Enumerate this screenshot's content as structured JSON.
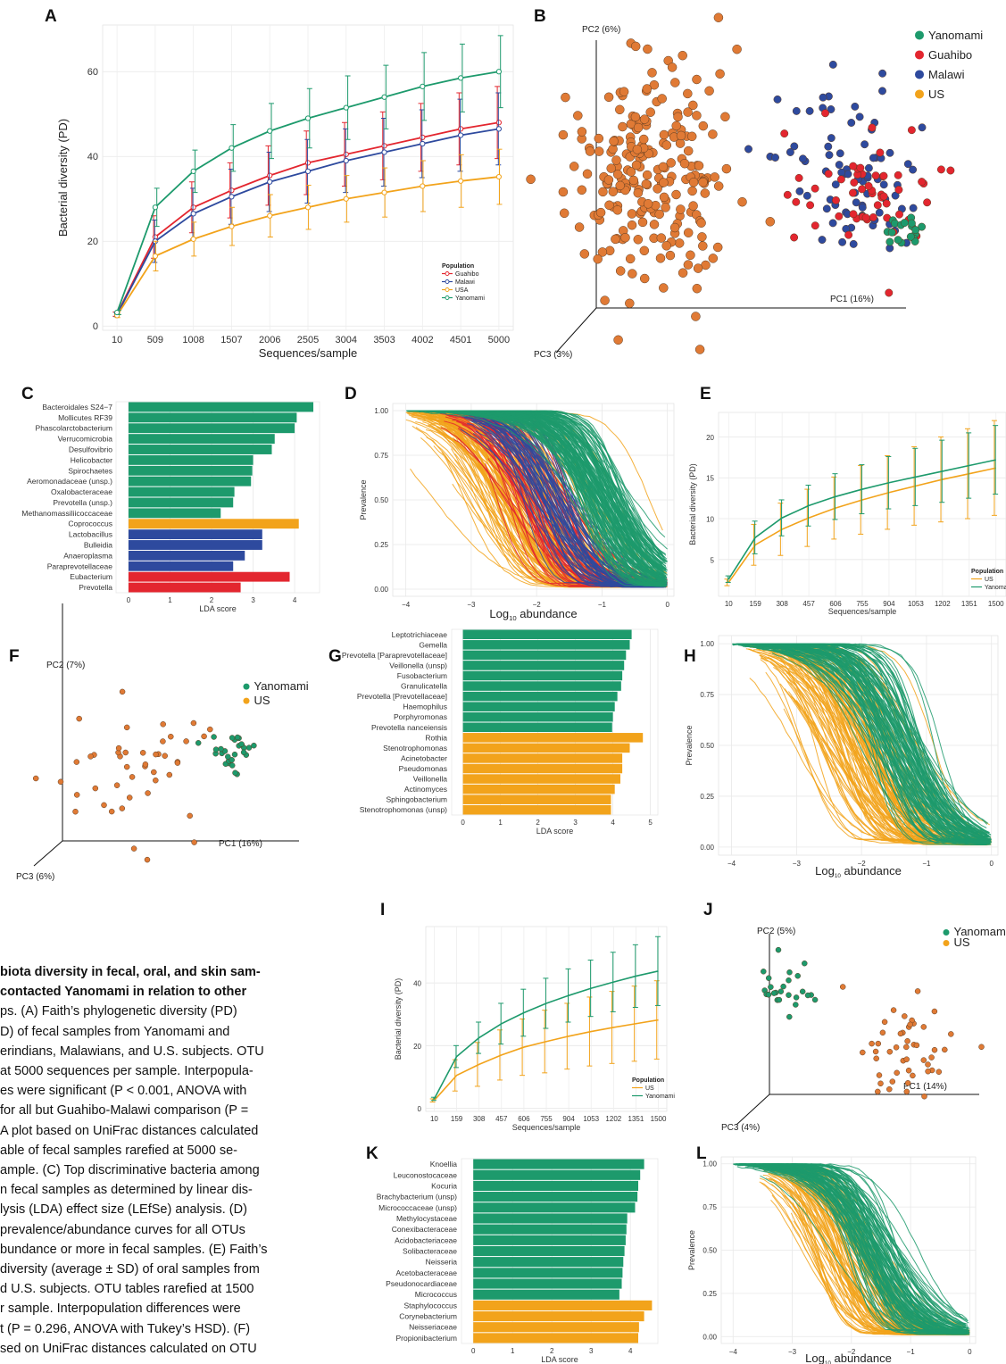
{
  "panel_labels": [
    "A",
    "B",
    "C",
    "D",
    "E",
    "F",
    "G",
    "H",
    "I",
    "J",
    "K",
    "L"
  ],
  "colors": {
    "yanomami": "#1d9a6c",
    "guahibo": "#e3262f",
    "malawi": "#2e4a9e",
    "us": "#f2a31b",
    "us_point": "#e07a35"
  },
  "caption_lines": [
    "biota diversity in fecal, oral, and skin sam-",
    "contacted Yanomami in relation to other",
    "ps. (A) Faith’s phylogenetic diversity (PD)",
    "D) of fecal samples from Yanomami and",
    "erindians, Malawians, and U.S. subjects. OTU",
    "at 5000 sequences per sample. Interpopula-",
    "es were significant (P < 0.001, ANOVA with",
    "for all but Guahibo-Malawi comparison (P =",
    "A plot based on UniFrac distances calculated",
    "able of fecal samples rarefied at 5000 se-",
    "ample. (C) Top discriminative bacteria among",
    "n fecal samples as determined by linear dis-",
    "lysis (LDA) effect size (LEfSe) analysis. (D)",
    "prevalence/abundance curves for all OTUs",
    "bundance or more in fecal samples. (E) Faith’s",
    "diversity (average ± SD) of oral samples from",
    "d U.S. subjects. OTU tables rarefied at 1500",
    "r sample. Interpopulation differences were",
    "t (P = 0.296, ANOVA with Tukey’s HSD). (F)",
    "sed on UniFrac distances calculated on OTU"
  ],
  "chart_data": [
    {
      "panel": "A",
      "type": "line",
      "xlabel": "Sequences/sample",
      "ylabel": "Bacterial diversity (PD)",
      "categories": [
        "10",
        "509",
        "1008",
        "1507",
        "2006",
        "2505",
        "3004",
        "3503",
        "4002",
        "4501",
        "5000"
      ],
      "ylim": [
        -1,
        71
      ],
      "yticks": [
        "0",
        "20",
        "40",
        "60"
      ],
      "legend_title": "Population",
      "legend": [
        "Guahibo",
        "Malawi",
        "USA",
        "Yanomami"
      ],
      "series": [
        {
          "name": "Guahibo",
          "color": "#e3262f",
          "values": [
            2.8,
            21,
            28,
            32,
            35.5,
            38.5,
            40.5,
            42.5,
            44.5,
            46.5,
            48
          ],
          "sd": [
            0.5,
            5,
            6,
            6.5,
            7,
            7.5,
            7.5,
            8,
            8,
            8.5,
            8.5
          ]
        },
        {
          "name": "Malawi",
          "color": "#2e4a9e",
          "values": [
            2.7,
            20,
            26.5,
            30.5,
            34,
            36.5,
            39,
            41,
            43,
            45,
            46.5
          ],
          "sd": [
            0.5,
            5,
            6,
            6.5,
            7,
            7.5,
            7.5,
            8,
            8,
            8.5,
            8.5
          ]
        },
        {
          "name": "USA",
          "color": "#f2a31b",
          "values": [
            2.5,
            16.5,
            20.5,
            23.5,
            26,
            28,
            30,
            31.5,
            33,
            34.2,
            35.2
          ],
          "sd": [
            0.5,
            3.5,
            4,
            4.5,
            5,
            5.2,
            5.5,
            5.8,
            6,
            6.2,
            6.5
          ]
        },
        {
          "name": "Yanomami",
          "color": "#1d9a6c",
          "values": [
            3.2,
            28,
            36.5,
            42,
            46,
            49,
            51.5,
            54,
            56.5,
            58.5,
            60
          ],
          "sd": [
            0.5,
            4.5,
            5,
            5.5,
            6.5,
            7,
            7.5,
            7.5,
            8,
            8,
            8.5
          ]
        }
      ]
    },
    {
      "panel": "B",
      "type": "scatter",
      "pc1": "PC1 (16%)",
      "pc2": "PC2 (6%)",
      "pc3": "PC3 (3%)",
      "legend": [
        {
          "name": "Yanomami",
          "color": "#1d9a6c"
        },
        {
          "name": "Guahibo",
          "color": "#e3262f"
        },
        {
          "name": "Malawi",
          "color": "#2e4a9e"
        },
        {
          "name": "US",
          "color": "#f2a31b"
        }
      ]
    },
    {
      "panel": "C",
      "type": "bar",
      "xlabel": "LDA score",
      "xticks": [
        "0",
        "1",
        "2",
        "3",
        "4"
      ],
      "xlim": [
        -0.3,
        4.6
      ],
      "categories": [
        "Bacteroidales S24−7",
        "Mollicutes RF39",
        "Phascolarctobacterium",
        "Verrucomicrobia",
        "Desulfovibrio",
        "Helicobacter",
        "Spirochaetes",
        "Aeromonadaceae (unsp.)",
        "Oxalobacteraceae",
        "Prevotella (unsp.)",
        "Methanomassiliicoccaceae",
        "Coprococcus",
        "Lactobacillus",
        "Bulleidia",
        "Anaeroplasma",
        "Paraprevotellaceae",
        "Eubacterium",
        "Prevotella"
      ],
      "values": [
        4.45,
        4.05,
        4.0,
        3.52,
        3.45,
        3.0,
        2.98,
        2.95,
        2.55,
        2.52,
        2.22,
        4.1,
        3.22,
        3.22,
        2.8,
        2.52,
        3.88,
        2.7
      ],
      "groups": [
        "Y",
        "Y",
        "Y",
        "Y",
        "Y",
        "Y",
        "Y",
        "Y",
        "Y",
        "Y",
        "Y",
        "U",
        "M",
        "M",
        "M",
        "M",
        "G",
        "G"
      ]
    },
    {
      "panel": "D",
      "type": "line",
      "ylabel": "Prevalence",
      "xlabel": "Log",
      "xlabel_sub": "10",
      "xlabel_tail": " abundance",
      "xticks": [
        "−4",
        "−3",
        "−2",
        "−1",
        "0"
      ],
      "yticks": [
        "0.00",
        "0.25",
        "0.50",
        "0.75",
        "1.00"
      ],
      "xlim": [
        -4.2,
        0.1
      ],
      "ylim": [
        -0.04,
        1.04
      ],
      "groups": [
        {
          "color": "#f2a31b",
          "center": -2.2,
          "spread": 0.9,
          "n": 150,
          "start": -4
        },
        {
          "color": "#e3262f",
          "center": -1.95,
          "spread": 0.45,
          "n": 60,
          "start": -3.5
        },
        {
          "color": "#2e4a9e",
          "center": -1.75,
          "spread": 0.4,
          "n": 60,
          "start": -3.2
        },
        {
          "color": "#1d9a6c",
          "center": -1.0,
          "spread": 0.35,
          "n": 140,
          "start": -4
        }
      ]
    },
    {
      "panel": "E",
      "type": "line",
      "xlabel": "Sequences/sample",
      "ylabel": "Bacterial diversity (PD)",
      "categories": [
        "10",
        "159",
        "308",
        "457",
        "606",
        "755",
        "904",
        "1053",
        "1202",
        "1351",
        "1500"
      ],
      "ylim": [
        0.5,
        23
      ],
      "yticks": [
        "5",
        "10",
        "15",
        "20"
      ],
      "legend_title": "Population",
      "legend": [
        "US",
        "Yanomami"
      ],
      "series": [
        {
          "name": "US",
          "color": "#f2a31b",
          "values": [
            2.2,
            6.8,
            8.7,
            10.1,
            11.3,
            12.3,
            13.2,
            14.0,
            14.8,
            15.5,
            16.2
          ],
          "sd": [
            0.4,
            2.5,
            3.2,
            3.5,
            3.8,
            4.2,
            4.5,
            4.8,
            5.2,
            5.5,
            5.8
          ]
        },
        {
          "name": "Yanomami",
          "color": "#1d9a6c",
          "values": [
            2.6,
            7.7,
            10.1,
            11.6,
            12.7,
            13.6,
            14.4,
            15.1,
            15.8,
            16.5,
            17.2
          ],
          "sd": [
            0.4,
            2,
            2.2,
            2.5,
            2.8,
            3,
            3.2,
            3.5,
            3.8,
            4,
            4.2
          ]
        }
      ]
    },
    {
      "panel": "F",
      "type": "scatter",
      "pc1": "PC1 (16%)",
      "pc2": "PC2 (7%)",
      "pc3": "PC3 (6%)",
      "legend": [
        {
          "name": "Yanomami",
          "color": "#1d9a6c"
        },
        {
          "name": "US",
          "color": "#f2a31b"
        }
      ]
    },
    {
      "panel": "G",
      "type": "bar",
      "xlabel": "LDA score",
      "xticks": [
        "0",
        "1",
        "2",
        "3",
        "4",
        "5"
      ],
      "xlim": [
        -0.3,
        5.2
      ],
      "categories": [
        "Leptotrichiaceae",
        "Gemella",
        "Prevotella [Paraprevotellaceae]",
        "Veillonella (unsp)",
        "Fusobacterium",
        "Granulicatella",
        "Prevotella [Prevotellaceae]",
        "Haemophilus",
        "Porphyromonas",
        "Prevotella nanceiensis",
        "Rothia",
        "Stenotrophomonas",
        "Acinetobacter",
        "Pseudomonas",
        "Veillonella",
        "Actinomyces",
        "Sphingobacterium",
        "Stenotrophomonas (unsp)"
      ],
      "values": [
        4.5,
        4.45,
        4.35,
        4.3,
        4.25,
        4.22,
        4.12,
        4.05,
        4.0,
        3.98,
        4.8,
        4.45,
        4.25,
        4.25,
        4.2,
        4.05,
        3.95,
        3.95
      ],
      "groups": [
        "Y",
        "Y",
        "Y",
        "Y",
        "Y",
        "Y",
        "Y",
        "Y",
        "Y",
        "Y",
        "U",
        "U",
        "U",
        "U",
        "U",
        "U",
        "U",
        "U"
      ]
    },
    {
      "panel": "H",
      "type": "line",
      "ylabel": "Prevalence",
      "xlabel": "Log",
      "xlabel_sub": "10",
      "xlabel_tail": " abundance",
      "xticks": [
        "−4",
        "−3",
        "−2",
        "−1",
        "0"
      ],
      "yticks": [
        "0.00",
        "0.25",
        "0.50",
        "0.75",
        "1.00"
      ],
      "xlim": [
        -4.2,
        0.1
      ],
      "ylim": [
        -0.04,
        1.04
      ],
      "groups": [
        {
          "color": "#f2a31b",
          "center": -2.0,
          "spread": 0.75,
          "n": 110,
          "start": -3.8
        },
        {
          "color": "#1d9a6c",
          "center": -1.45,
          "spread": 0.45,
          "n": 110,
          "start": -4
        }
      ]
    },
    {
      "panel": "I",
      "type": "line",
      "xlabel": "Sequences/sample",
      "ylabel": "Bacterial diversity (PD)",
      "categories": [
        "10",
        "159",
        "308",
        "457",
        "606",
        "755",
        "904",
        "1053",
        "1202",
        "1351",
        "1500"
      ],
      "ylim": [
        -1,
        58
      ],
      "yticks": [
        "0",
        "20",
        "40"
      ],
      "legend_title": "Population",
      "legend": [
        "US",
        "Yanomami"
      ],
      "series": [
        {
          "name": "US",
          "color": "#f2a31b",
          "values": [
            2.5,
            10.5,
            14,
            17,
            19.5,
            21.3,
            23,
            24.5,
            25.8,
            27,
            28.2
          ],
          "sd": [
            0.5,
            5,
            7,
            8,
            9,
            10,
            10.5,
            11,
            11.5,
            12,
            12.5
          ]
        },
        {
          "name": "Yanomami",
          "color": "#1d9a6c",
          "values": [
            3,
            16.5,
            22.5,
            27,
            30.5,
            33.5,
            36,
            38.3,
            40.3,
            42.2,
            43.8
          ],
          "sd": [
            0.5,
            3.5,
            5,
            6.5,
            7.5,
            8,
            8.5,
            9,
            9.5,
            10,
            11
          ]
        }
      ]
    },
    {
      "panel": "J",
      "type": "scatter",
      "pc1": "PC1 (14%)",
      "pc2": "PC2 (5%)",
      "pc3": "PC3 (4%)",
      "legend": [
        {
          "name": "Yanomami",
          "color": "#1d9a6c"
        },
        {
          "name": "US",
          "color": "#f2a31b"
        }
      ]
    },
    {
      "panel": "K",
      "type": "bar",
      "xlabel": "LDA score",
      "xticks": [
        "0",
        "1",
        "2",
        "3",
        "4"
      ],
      "xlim": [
        -0.3,
        4.7
      ],
      "categories": [
        "Knoellia",
        "Leuconostocaceae",
        "Kocuria",
        "Brachybacterium (unsp)",
        "Micrococcaceae (unsp)",
        "Methylocystaceae",
        "Conexibacteraceae",
        "Acidobacteriaceae",
        "Solibacteraceae",
        "Neisseria",
        "Acetobacteraceae",
        "Pseudonocardiaceae",
        "Micrococcus",
        "Staphylococcus",
        "Corynebacterium",
        "Neisseriaceae",
        "Propionibacterium"
      ],
      "values": [
        4.35,
        4.25,
        4.2,
        4.18,
        4.12,
        3.92,
        3.9,
        3.88,
        3.85,
        3.82,
        3.8,
        3.78,
        3.72,
        4.55,
        4.35,
        4.22,
        4.2
      ],
      "groups": [
        "Y",
        "Y",
        "Y",
        "Y",
        "Y",
        "Y",
        "Y",
        "Y",
        "Y",
        "Y",
        "Y",
        "Y",
        "Y",
        "U",
        "U",
        "U",
        "U"
      ]
    },
    {
      "panel": "L",
      "type": "line",
      "ylabel": "Prevalence",
      "xlabel": "Log",
      "xlabel_sub": "10",
      "xlabel_tail": " abundance",
      "xticks": [
        "−4",
        "−3",
        "−2",
        "−1",
        "0"
      ],
      "yticks": [
        "0.00",
        "0.25",
        "0.50",
        "0.75",
        "1.00"
      ],
      "xlim": [
        -4.2,
        0.1
      ],
      "ylim": [
        -0.04,
        1.04
      ],
      "groups": [
        {
          "color": "#f2a31b",
          "center": -2.2,
          "spread": 0.65,
          "n": 90,
          "start": -3.6
        },
        {
          "color": "#1d9a6c",
          "center": -1.6,
          "spread": 0.45,
          "n": 110,
          "start": -4
        }
      ]
    }
  ]
}
